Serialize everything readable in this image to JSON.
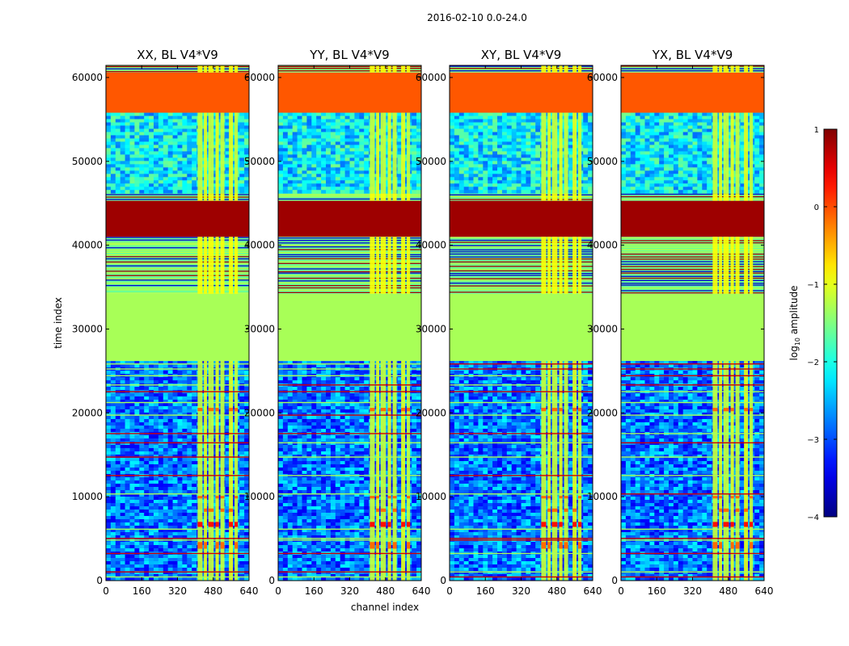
{
  "figure": {
    "suptitle": "2016-02-10 0.0-24.0",
    "xlabel": "channel index",
    "ylabel": "time index"
  },
  "chart_data": {
    "type": "heatmap",
    "colormap": "jet",
    "xlim": [
      0,
      640
    ],
    "ylim": [
      0,
      61440
    ],
    "xticks": [
      "0",
      "160",
      "320",
      "480",
      "640"
    ],
    "yticks": [
      "0",
      "10000",
      "20000",
      "30000",
      "40000",
      "50000",
      "60000"
    ],
    "panels": [
      {
        "title": "XX, BL V4*V9",
        "polarization": "XX"
      },
      {
        "title": "YY, BL V4*V9",
        "polarization": "YY"
      },
      {
        "title": "XY, BL V4*V9",
        "polarization": "XY"
      },
      {
        "title": "YX, BL V4*V9",
        "polarization": "YX"
      }
    ],
    "time_blocks": [
      {
        "t0": 0,
        "t1": 26200,
        "kind": "noise",
        "level": -2.8
      },
      {
        "t0": 26200,
        "t1": 34200,
        "kind": "flat",
        "level": -1.3
      },
      {
        "t0": 34200,
        "t1": 41000,
        "kind": "striped",
        "level": -1.6
      },
      {
        "t0": 41000,
        "t1": 45300,
        "kind": "flat",
        "level": 0.85
      },
      {
        "t0": 45300,
        "t1": 46200,
        "kind": "striped",
        "level": -1.6
      },
      {
        "t0": 46200,
        "t1": 55800,
        "kind": "noise",
        "level": -2.2
      },
      {
        "t0": 55800,
        "t1": 60600,
        "kind": "flat",
        "level": -0.05
      },
      {
        "t0": 60600,
        "t1": 61440,
        "kind": "striped",
        "level": -1.5
      }
    ],
    "rfi_channels": [
      {
        "c0": 410,
        "c1": 432
      },
      {
        "c0": 438,
        "c1": 452
      },
      {
        "c0": 458,
        "c1": 482
      },
      {
        "c0": 490,
        "c1": 505
      },
      {
        "c0": 512,
        "c1": 530
      },
      {
        "c0": 550,
        "c1": 568
      },
      {
        "c0": 575,
        "c1": 590
      }
    ],
    "colorbar": {
      "label_prefix": "log",
      "label_subscript": "10",
      "label_suffix": " amplitude",
      "min": -4,
      "max": 1,
      "ticks": [
        "1",
        "0",
        "−1",
        "−2",
        "−3",
        "−4"
      ],
      "tick_values": [
        1,
        0,
        -1,
        -2,
        -3,
        -4
      ]
    }
  }
}
